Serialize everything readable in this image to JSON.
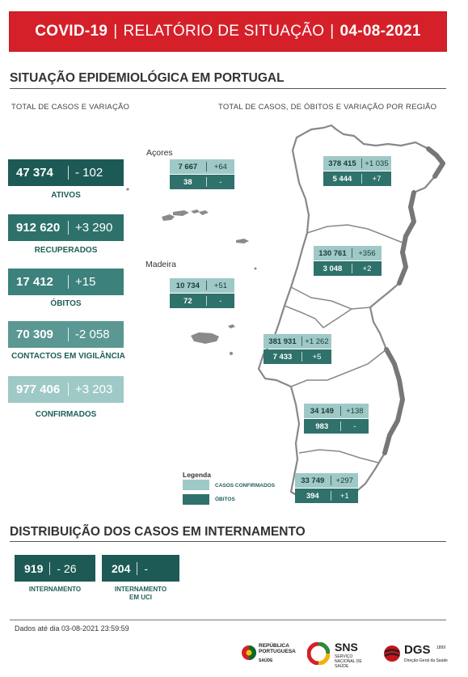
{
  "header": {
    "part1": "COVID-19",
    "sep": "|",
    "part2": "RELATÓRIO DE SITUAÇÃO",
    "part3": "04-08-2021"
  },
  "section1": {
    "title": "SITUAÇÃO EPIDEMIOLÓGICA EM PORTUGAL",
    "left_subtitle": "TOTAL DE CASOS E VARIAÇÃO",
    "right_subtitle": "TOTAL DE CASOS, DE ÓBITOS E VARIAÇÃO POR REGIÃO"
  },
  "totals": [
    {
      "value": "47 374",
      "delta": "- 102",
      "label": "ATIVOS"
    },
    {
      "value": "912 620",
      "delta": "+3 290",
      "label": "RECUPERADOS"
    },
    {
      "value": "17 412",
      "delta": "+15",
      "label": "ÓBITOS"
    },
    {
      "value": "70 309",
      "delta": "-2 058",
      "label": "CONTACTOS EM VIGILÂNCIA"
    },
    {
      "value": "977 406",
      "delta": "+3 203",
      "label": "CONFIRMADOS"
    }
  ],
  "regions": [
    {
      "name": "Açores",
      "cases": "7 667",
      "cases_delta": "+64",
      "deaths": "38",
      "deaths_delta": "-"
    },
    {
      "name": "Madeira",
      "cases": "10 734",
      "cases_delta": "+51",
      "deaths": "72",
      "deaths_delta": "-"
    },
    {
      "name": "",
      "cases": "378 415",
      "cases_delta": "+1 035",
      "deaths": "5 444",
      "deaths_delta": "+7"
    },
    {
      "name": "",
      "cases": "130 761",
      "cases_delta": "+356",
      "deaths": "3 048",
      "deaths_delta": "+2"
    },
    {
      "name": "",
      "cases": "381 931",
      "cases_delta": "+1 262",
      "deaths": "7 433",
      "deaths_delta": "+5"
    },
    {
      "name": "",
      "cases": "34 149",
      "cases_delta": "+138",
      "deaths": "983",
      "deaths_delta": "-"
    },
    {
      "name": "",
      "cases": "33 749",
      "cases_delta": "+297",
      "deaths": "394",
      "deaths_delta": "+1"
    }
  ],
  "legend": {
    "title": "Legenda",
    "confirmed": "CASOS CONFIRMADOS",
    "deaths": "ÓBITOS"
  },
  "section2": {
    "title": "DISTRIBUIÇÃO DOS CASOS EM INTERNAMENTO"
  },
  "hospital": [
    {
      "value": "919",
      "delta": "- 26",
      "label": "INTERNAMENTO"
    },
    {
      "value": "204",
      "delta": "-",
      "label": "INTERNAMENTO EM UCI"
    }
  ],
  "footer": {
    "note": "Dados até dia 03-08-2021 23:59:59",
    "logos": {
      "republica": "REPÚBLICA PORTUGUESA",
      "saude": "SAÚDE",
      "sns": "SNS",
      "sns_sub": "SERVIÇO NACIONAL DE SAÚDE",
      "dgs": "DGS",
      "dgs_sub": "Direção-Geral da Saúde",
      "dgs_year": "1899"
    }
  },
  "colors": {
    "banner_red": "#d5202a",
    "teal_dark": "#1d5a55",
    "teal_light": "#9fc9c6"
  }
}
